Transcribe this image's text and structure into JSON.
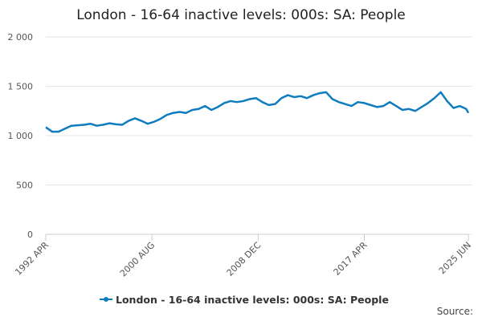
{
  "chart_data": {
    "type": "line",
    "title": "London - 16-64 inactive levels: 000s: SA: People",
    "source": "Source:",
    "x": [
      "1992 APR",
      "1992 OCT",
      "1993 APR",
      "1993 OCT",
      "1994 APR",
      "1994 OCT",
      "1995 APR",
      "1995 OCT",
      "1996 APR",
      "1996 OCT",
      "1997 APR",
      "1997 OCT",
      "1998 APR",
      "1998 OCT",
      "1999 APR",
      "1999 OCT",
      "2000 APR",
      "2000 OCT",
      "2001 APR",
      "2001 OCT",
      "2002 APR",
      "2002 OCT",
      "2003 APR",
      "2003 OCT",
      "2004 APR",
      "2004 OCT",
      "2005 APR",
      "2005 OCT",
      "2006 APR",
      "2006 OCT",
      "2007 APR",
      "2007 OCT",
      "2008 APR",
      "2008 OCT",
      "2009 APR",
      "2009 OCT",
      "2010 APR",
      "2010 OCT",
      "2011 APR",
      "2011 OCT",
      "2012 APR",
      "2012 OCT",
      "2013 APR",
      "2013 OCT",
      "2014 APR",
      "2014 OCT",
      "2015 APR",
      "2015 OCT",
      "2016 APR",
      "2016 OCT",
      "2017 APR",
      "2017 OCT",
      "2018 APR",
      "2018 OCT",
      "2019 APR",
      "2019 OCT",
      "2020 APR",
      "2020 OCT",
      "2021 APR",
      "2021 OCT",
      "2022 APR",
      "2022 OCT",
      "2023 APR",
      "2023 OCT",
      "2024 APR",
      "2024 OCT",
      "2025 APR",
      "2025 JUN"
    ],
    "series": [
      {
        "name": "London - 16-64 inactive levels: 000s: SA: People",
        "color": "#0f7cbf",
        "values": [
          1085,
          1040,
          1040,
          1070,
          1100,
          1105,
          1110,
          1120,
          1100,
          1110,
          1125,
          1115,
          1110,
          1150,
          1175,
          1150,
          1120,
          1140,
          1170,
          1210,
          1230,
          1240,
          1230,
          1260,
          1270,
          1300,
          1260,
          1290,
          1330,
          1350,
          1340,
          1350,
          1370,
          1380,
          1340,
          1310,
          1320,
          1380,
          1410,
          1390,
          1400,
          1380,
          1410,
          1430,
          1440,
          1370,
          1340,
          1320,
          1300,
          1340,
          1330,
          1310,
          1290,
          1300,
          1340,
          1300,
          1260,
          1270,
          1250,
          1290,
          1330,
          1380,
          1440,
          1350,
          1280,
          1300,
          1270,
          1230
        ]
      }
    ],
    "ylim": [
      0,
      2000
    ],
    "yticks": [
      0,
      500,
      {
        "value": 1000,
        "label": "1 000"
      },
      {
        "value": 1500,
        "label": "1 500"
      },
      {
        "value": 2000,
        "label": "2 000"
      }
    ],
    "xticks": [
      "1992 APR",
      "2000 AUG",
      "2008 DEC",
      "2017 APR",
      "2025 JUN"
    ],
    "grid": true
  }
}
